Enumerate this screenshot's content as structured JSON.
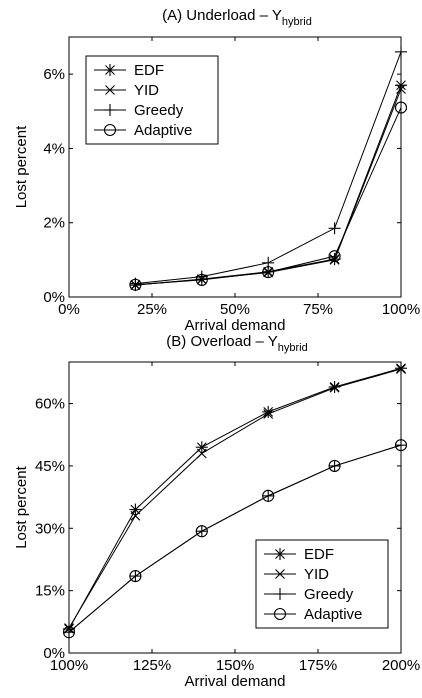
{
  "chart_data": [
    {
      "type": "line",
      "title": "(A) Underload – Y",
      "title_subscript": "hybrid",
      "xlabel": "Arrival demand",
      "ylabel": "Lost percent",
      "xlim": [
        0,
        100
      ],
      "ylim": [
        0,
        7
      ],
      "xticks": [
        0,
        25,
        50,
        75,
        100
      ],
      "xtick_labels": [
        "0%",
        "25%",
        "50%",
        "75%",
        "100%"
      ],
      "yticks": [
        0,
        2,
        4,
        6
      ],
      "ytick_labels": [
        "0%",
        "2%",
        "4%",
        "6%"
      ],
      "x": [
        20,
        40,
        60,
        80,
        100
      ],
      "grid": false,
      "legend_position": "top-left",
      "series": [
        {
          "name": "EDF",
          "marker": "asterisk",
          "values": [
            0.32,
            0.48,
            0.68,
            1.02,
            5.7
          ]
        },
        {
          "name": "YID",
          "marker": "x",
          "values": [
            0.33,
            0.47,
            0.66,
            1.0,
            5.6
          ]
        },
        {
          "name": "Greedy",
          "marker": "plus",
          "values": [
            0.36,
            0.55,
            0.92,
            1.85,
            6.6
          ]
        },
        {
          "name": "Adaptive",
          "marker": "circle",
          "values": [
            0.33,
            0.46,
            0.67,
            1.1,
            5.1
          ]
        }
      ]
    },
    {
      "type": "line",
      "title": "(B) Overload – Y",
      "title_subscript": "hybrid",
      "xlabel": "Arrival demand",
      "ylabel": "Lost percent",
      "xlim": [
        100,
        200
      ],
      "ylim": [
        0,
        70
      ],
      "xticks": [
        100,
        125,
        150,
        175,
        200
      ],
      "xtick_labels": [
        "100%",
        "125%",
        "150%",
        "175%",
        "200%"
      ],
      "yticks": [
        0,
        15,
        30,
        45,
        60
      ],
      "ytick_labels": [
        "0%",
        "15%",
        "30%",
        "45%",
        "60%"
      ],
      "x": [
        100,
        120,
        140,
        160,
        180,
        200
      ],
      "grid": false,
      "legend_position": "bottom-right",
      "series": [
        {
          "name": "EDF",
          "marker": "asterisk",
          "values": [
            5.8,
            34.5,
            49.5,
            58.0,
            64.0,
            68.5
          ]
        },
        {
          "name": "YID",
          "marker": "x",
          "values": [
            6.0,
            33.0,
            48.0,
            57.5,
            63.8,
            68.3
          ]
        },
        {
          "name": "Greedy",
          "marker": "plus",
          "values": [
            5.0,
            18.5,
            29.3,
            37.8,
            45.0,
            50.0
          ]
        },
        {
          "name": "Adaptive",
          "marker": "circle",
          "values": [
            5.0,
            18.5,
            29.3,
            37.8,
            45.0,
            50.0
          ]
        }
      ]
    }
  ]
}
